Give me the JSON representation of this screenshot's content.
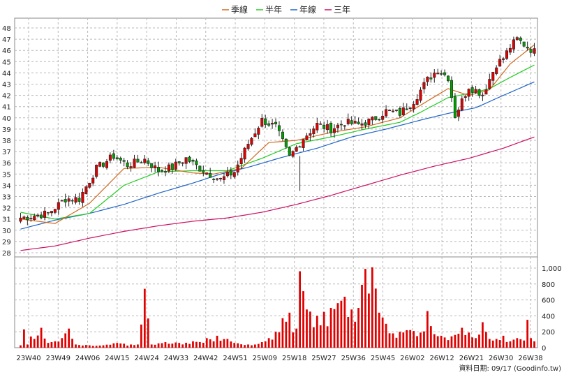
{
  "chart_data": {
    "type": "candlestick",
    "legend": [
      {
        "name": "季線",
        "color": "#d2691e"
      },
      {
        "name": "半年",
        "color": "#22cc22"
      },
      {
        "name": "年線",
        "color": "#1e64c8"
      },
      {
        "name": "三年",
        "color": "#cc1166"
      }
    ],
    "price_axis": {
      "min": 28,
      "max": 48,
      "ticks": [
        28,
        29,
        30,
        31,
        32,
        33,
        34,
        35,
        36,
        37,
        38,
        39,
        40,
        41,
        42,
        43,
        44,
        45,
        46,
        47,
        48
      ]
    },
    "volume_axis": {
      "max": 1000,
      "ticks": [
        0,
        200,
        400,
        600,
        800,
        1000
      ],
      "tick_labels": [
        "0",
        "200",
        "400",
        "600",
        "800",
        "1,000"
      ]
    },
    "x_tick_labels": [
      "23W40",
      "23W49",
      "24W06",
      "24W15",
      "24W24",
      "24W33",
      "24W42",
      "24W51",
      "25W09",
      "25W18",
      "25W27",
      "25W36",
      "25W45",
      "26W02",
      "26W12",
      "26W21",
      "26W30",
      "26W38"
    ],
    "grid": true,
    "legend_position": "top-center",
    "footer": "資料日期: 09/17  (Goodinfo.tw)",
    "anchors": {
      "close": [
        [
          0,
          31.1
        ],
        [
          8,
          31.5
        ],
        [
          13,
          32.8
        ],
        [
          17,
          32.8
        ],
        [
          22,
          35.5
        ],
        [
          27,
          36.6
        ],
        [
          31,
          35.8
        ],
        [
          36,
          36.3
        ],
        [
          40,
          35.3
        ],
        [
          44,
          35.6
        ],
        [
          48,
          36.4
        ],
        [
          52,
          35.5
        ],
        [
          56,
          34.8
        ],
        [
          58,
          34.5
        ],
        [
          62,
          35.2
        ],
        [
          66,
          37.7
        ],
        [
          70,
          39.8
        ],
        [
          74,
          39.2
        ],
        [
          78,
          36.5
        ],
        [
          82,
          38.2
        ],
        [
          86,
          39.4
        ],
        [
          90,
          39.0
        ],
        [
          94,
          39.6
        ],
        [
          98,
          39.4
        ],
        [
          102,
          39.8
        ],
        [
          106,
          40.6
        ],
        [
          110,
          40.4
        ],
        [
          114,
          41.5
        ],
        [
          118,
          43.4
        ],
        [
          121,
          44.3
        ],
        [
          124,
          43.6
        ],
        [
          126,
          40.2
        ],
        [
          130,
          42.8
        ],
        [
          134,
          42.1
        ],
        [
          138,
          44.8
        ],
        [
          140,
          45.3
        ],
        [
          142,
          46.3
        ],
        [
          144,
          47.0
        ],
        [
          147,
          46.3
        ],
        [
          149,
          45.9
        ]
      ],
      "ma_q": [
        [
          0,
          31.0
        ],
        [
          10,
          30.6
        ],
        [
          20,
          32.4
        ],
        [
          30,
          35.5
        ],
        [
          40,
          35.6
        ],
        [
          50,
          35.1
        ],
        [
          56,
          35.0
        ],
        [
          64,
          35.5
        ],
        [
          72,
          37.8
        ],
        [
          80,
          38.0
        ],
        [
          90,
          38.7
        ],
        [
          100,
          39.2
        ],
        [
          110,
          40.0
        ],
        [
          118,
          41.5
        ],
        [
          124,
          42.6
        ],
        [
          130,
          42.0
        ],
        [
          136,
          42.5
        ],
        [
          142,
          44.8
        ],
        [
          149,
          46.5
        ]
      ],
      "ma_h": [
        [
          0,
          31.6
        ],
        [
          10,
          31.0
        ],
        [
          20,
          31.5
        ],
        [
          30,
          34.0
        ],
        [
          40,
          35.2
        ],
        [
          50,
          35.3
        ],
        [
          60,
          35.3
        ],
        [
          70,
          36.4
        ],
        [
          80,
          37.7
        ],
        [
          90,
          38.3
        ],
        [
          100,
          39.0
        ],
        [
          110,
          39.6
        ],
        [
          116,
          40.5
        ],
        [
          124,
          41.8
        ],
        [
          132,
          42.3
        ],
        [
          136,
          42.6
        ],
        [
          142,
          43.6
        ],
        [
          149,
          44.7
        ]
      ],
      "ma_y": [
        [
          0,
          30.1
        ],
        [
          10,
          30.9
        ],
        [
          20,
          31.5
        ],
        [
          30,
          32.3
        ],
        [
          40,
          33.3
        ],
        [
          50,
          34.2
        ],
        [
          58,
          35.0
        ],
        [
          66,
          35.6
        ],
        [
          76,
          36.5
        ],
        [
          86,
          37.3
        ],
        [
          96,
          38.3
        ],
        [
          106,
          39.0
        ],
        [
          116,
          39.8
        ],
        [
          124,
          40.4
        ],
        [
          132,
          40.9
        ],
        [
          140,
          42.0
        ],
        [
          149,
          43.2
        ]
      ],
      "ma_3y": [
        [
          0,
          28.2
        ],
        [
          10,
          28.6
        ],
        [
          20,
          29.3
        ],
        [
          30,
          29.9
        ],
        [
          40,
          30.4
        ],
        [
          50,
          30.8
        ],
        [
          60,
          31.1
        ],
        [
          70,
          31.6
        ],
        [
          80,
          32.3
        ],
        [
          90,
          33.1
        ],
        [
          100,
          34.0
        ],
        [
          110,
          34.9
        ],
        [
          120,
          35.7
        ],
        [
          130,
          36.4
        ],
        [
          140,
          37.3
        ],
        [
          149,
          38.3
        ]
      ],
      "volume": [
        [
          0,
          30
        ],
        [
          1,
          230
        ],
        [
          2,
          40
        ],
        [
          3,
          140
        ],
        [
          4,
          110
        ],
        [
          6,
          250
        ],
        [
          8,
          60
        ],
        [
          10,
          80
        ],
        [
          12,
          120
        ],
        [
          14,
          240
        ],
        [
          16,
          40
        ],
        [
          20,
          30
        ],
        [
          24,
          30
        ],
        [
          28,
          60
        ],
        [
          30,
          50
        ],
        [
          32,
          40
        ],
        [
          34,
          40
        ],
        [
          36,
          740
        ],
        [
          38,
          40
        ],
        [
          42,
          70
        ],
        [
          46,
          60
        ],
        [
          50,
          80
        ],
        [
          54,
          120
        ],
        [
          57,
          150
        ],
        [
          60,
          110
        ],
        [
          62,
          60
        ],
        [
          66,
          40
        ],
        [
          70,
          70
        ],
        [
          72,
          120
        ],
        [
          74,
          200
        ],
        [
          76,
          370
        ],
        [
          78,
          440
        ],
        [
          80,
          240
        ],
        [
          81,
          960
        ],
        [
          82,
          710
        ],
        [
          83,
          480
        ],
        [
          86,
          400
        ],
        [
          88,
          450
        ],
        [
          90,
          500
        ],
        [
          92,
          560
        ],
        [
          93,
          590
        ],
        [
          94,
          640
        ],
        [
          96,
          480
        ],
        [
          98,
          500
        ],
        [
          99,
          790
        ],
        [
          100,
          990
        ],
        [
          101,
          680
        ],
        [
          102,
          1010
        ],
        [
          104,
          440
        ],
        [
          106,
          300
        ],
        [
          108,
          180
        ],
        [
          110,
          200
        ],
        [
          112,
          220
        ],
        [
          114,
          210
        ],
        [
          116,
          190
        ],
        [
          118,
          460
        ],
        [
          120,
          170
        ],
        [
          122,
          150
        ],
        [
          126,
          160
        ],
        [
          128,
          250
        ],
        [
          130,
          190
        ],
        [
          132,
          120
        ],
        [
          134,
          320
        ],
        [
          136,
          110
        ],
        [
          138,
          110
        ],
        [
          140,
          150
        ],
        [
          142,
          80
        ],
        [
          144,
          120
        ],
        [
          146,
          90
        ],
        [
          147,
          350
        ],
        [
          148,
          120
        ],
        [
          149,
          80
        ]
      ]
    }
  }
}
